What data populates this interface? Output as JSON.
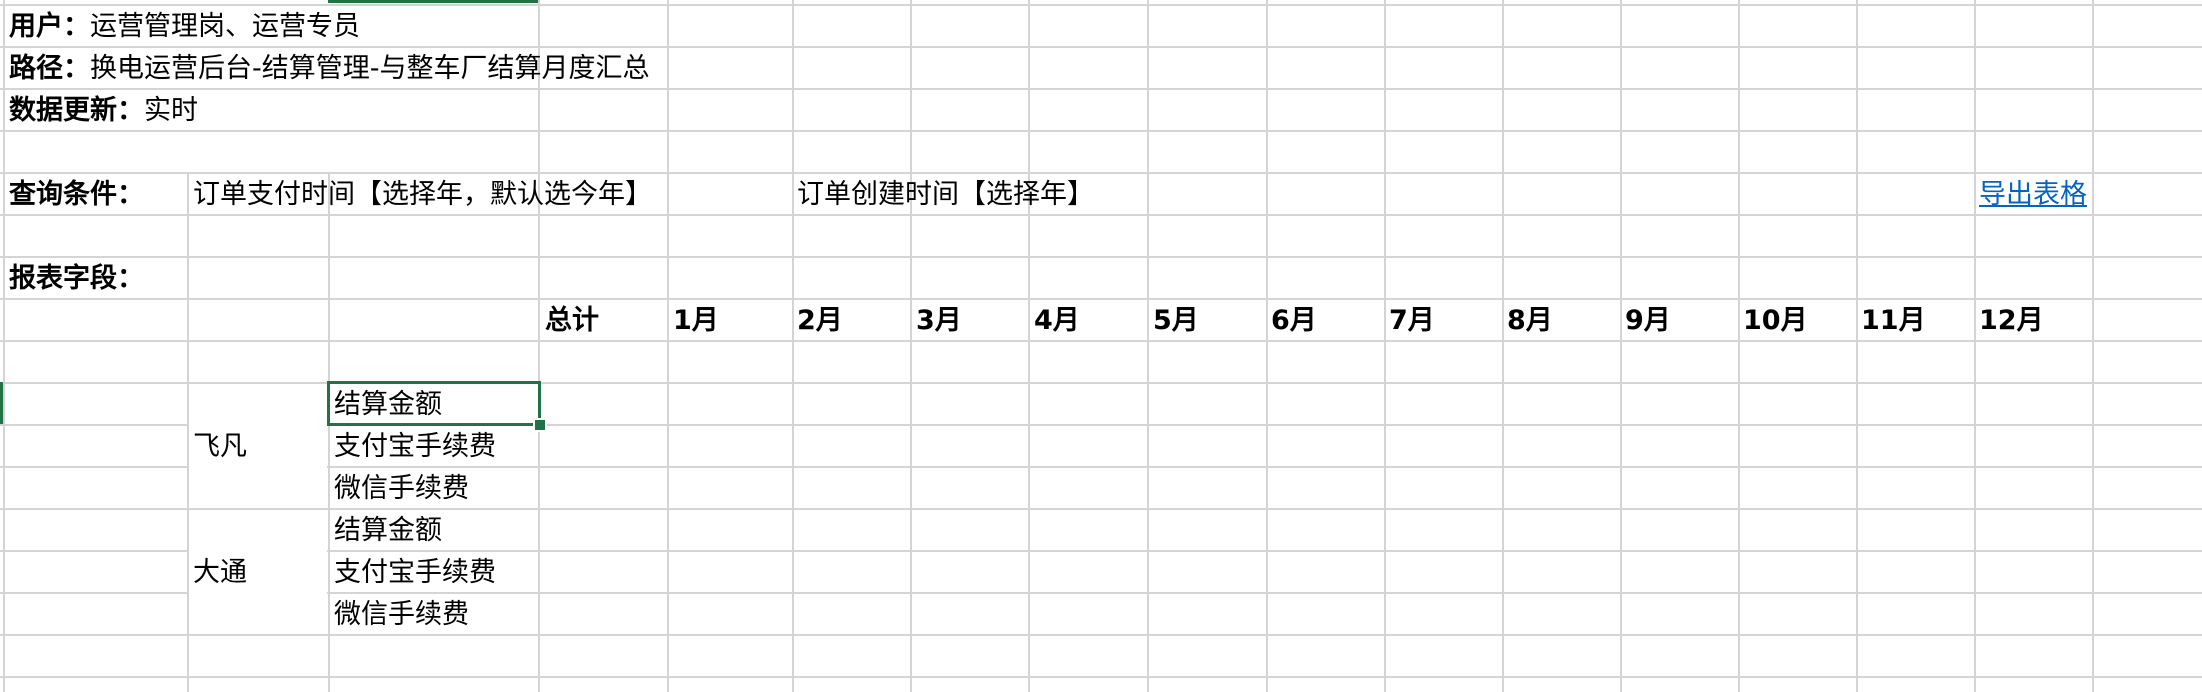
{
  "info": {
    "user_label": "用户：",
    "user_value": "运营管理岗、运营专员",
    "path_label": "路径：",
    "path_value": "换电运营后台-结算管理-与整车厂结算月度汇总",
    "update_label": "数据更新：",
    "update_value": "实时"
  },
  "query": {
    "label": "查询条件：",
    "pay_time": "订单支付时间【选择年，默认选今年】",
    "create_time": "订单创建时间【选择年】",
    "export_link": "导出表格"
  },
  "report": {
    "label": "报表字段：",
    "columns": [
      "总计",
      "1月",
      "2月",
      "3月",
      "4月",
      "5月",
      "6月",
      "7月",
      "8月",
      "9月",
      "10月",
      "11月",
      "12月"
    ],
    "groups": [
      {
        "name": "飞凡",
        "rows": [
          "结算金额",
          "支付宝手续费",
          "微信手续费"
        ]
      },
      {
        "name": "大通",
        "rows": [
          "结算金额",
          "支付宝手续费",
          "微信手续费"
        ]
      }
    ]
  },
  "colors": {
    "grid": "#d4d4d4",
    "selection": "#217346",
    "link": "#0563c1"
  }
}
